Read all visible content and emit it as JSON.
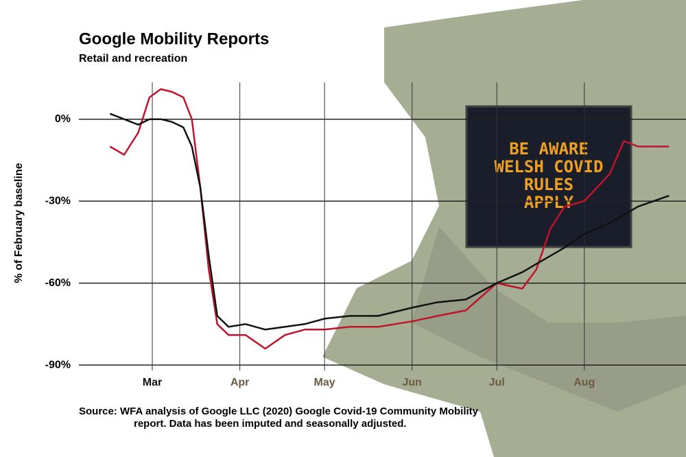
{
  "chart_data": {
    "type": "line",
    "title": "Google Mobility Reports",
    "subtitle": "Retail and recreation",
    "y_label": "% of February baseline",
    "source": "Source: WFA analysis of Google LLC (2020) Google Covid-19 Community Mobility report. Data has been imputed and seasonally adjusted.",
    "annotations": [
      "BE AWARE",
      "WELSH COVID",
      "RULES",
      "APPLY"
    ],
    "x": [
      46,
      51,
      56,
      60,
      64,
      68,
      72,
      75,
      78,
      81,
      84,
      88,
      94,
      101,
      108,
      115,
      122,
      131,
      141,
      153,
      162,
      172,
      183,
      192,
      197,
      202,
      207,
      214,
      223,
      228,
      233,
      244
    ],
    "xlim": [
      35,
      250
    ],
    "xticks": [
      {
        "value": 61,
        "label": "Mar"
      },
      {
        "value": 92,
        "label": "Apr"
      },
      {
        "value": 122,
        "label": "May"
      },
      {
        "value": 153,
        "label": "Jun"
      },
      {
        "value": 183,
        "label": "Jul"
      },
      {
        "value": 214,
        "label": "Aug"
      }
    ],
    "ylim": [
      -92,
      16
    ],
    "yticks": [
      {
        "value": 0,
        "label": "0%"
      },
      {
        "value": -30,
        "label": "-30%"
      },
      {
        "value": -60,
        "label": "-60%"
      },
      {
        "value": -90,
        "label": "-90%"
      }
    ],
    "grid": true,
    "series": [
      {
        "color": "#c0142c",
        "values": [
          -10,
          -13,
          -5,
          8,
          11,
          10,
          8,
          0,
          -25,
          -55,
          -75,
          -79,
          -79,
          -84,
          -79,
          -77,
          -77,
          -76,
          -76,
          -74,
          -72,
          -70,
          -60,
          -62,
          -55,
          -40,
          -32,
          -30,
          -20,
          -8,
          -10,
          -10
        ]
      },
      {
        "color": "#111111",
        "values": [
          2,
          0,
          -2,
          0,
          0,
          -1,
          -3,
          -10,
          -25,
          -50,
          -72,
          -76,
          -75,
          -77,
          -76,
          -75,
          -73,
          -72,
          -72,
          -69,
          -67,
          -66,
          -60,
          -56,
          -53,
          -50,
          -47,
          -42,
          -38,
          -35,
          -32,
          -28
        ]
      }
    ]
  }
}
